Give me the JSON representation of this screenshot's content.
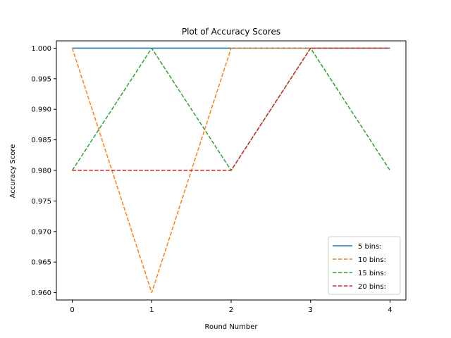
{
  "chart_data": {
    "type": "line",
    "title": "Plot of Accuracy Scores",
    "xlabel": "Round Number",
    "ylabel": "Accuracy Score",
    "x": [
      0,
      1,
      2,
      3,
      4
    ],
    "xticks": [
      "0",
      "1",
      "2",
      "3",
      "4"
    ],
    "yticks": [
      "0.960",
      "0.965",
      "0.970",
      "0.975",
      "0.980",
      "0.985",
      "0.990",
      "0.995",
      "1.000"
    ],
    "ylim": [
      0.9588,
      1.0012
    ],
    "xlim": [
      -0.2,
      4.2
    ],
    "grid": false,
    "legend_position": "lower-right",
    "series": [
      {
        "name": "5 bins:",
        "values": [
          1.0,
          1.0,
          1.0,
          1.0,
          1.0
        ],
        "color": "#1f77b4",
        "style": "solid"
      },
      {
        "name": "10 bins:",
        "values": [
          1.0,
          0.96,
          1.0,
          1.0,
          1.0
        ],
        "color": "#ff7f0e",
        "style": "dashed"
      },
      {
        "name": "15 bins:",
        "values": [
          0.98,
          1.0,
          0.98,
          1.0,
          0.98
        ],
        "color": "#2ca02c",
        "style": "dashed"
      },
      {
        "name": "20 bins:",
        "values": [
          0.98,
          0.98,
          0.98,
          1.0,
          1.0
        ],
        "color": "#d62728",
        "style": "dashed"
      }
    ]
  }
}
